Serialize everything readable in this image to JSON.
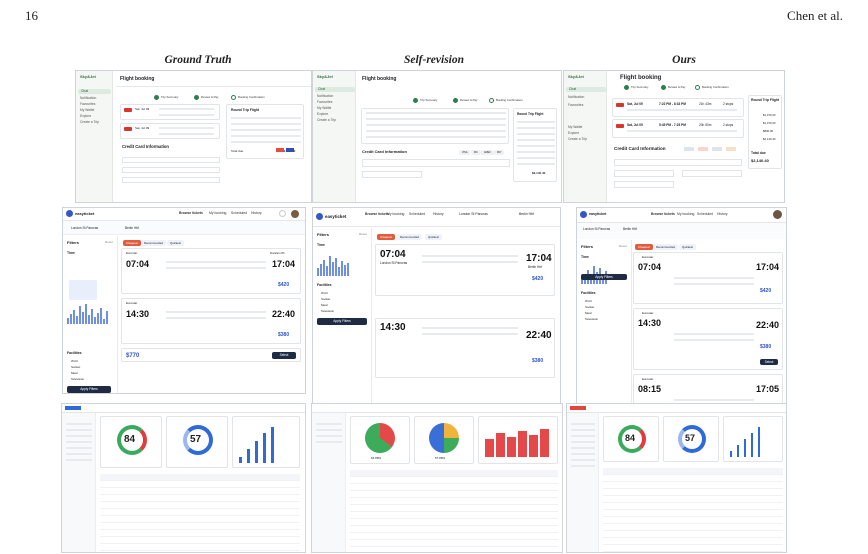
{
  "page_number": "16",
  "authors": "Chen et al.",
  "columns": [
    "Ground Truth",
    "Self-revision",
    "Ours"
  ],
  "flight": {
    "gt": {
      "logo": "Sky&Jet",
      "title": "Flight booking",
      "side": [
        "Chat",
        "Notification",
        "Favourites",
        "My Wallet",
        "Explore",
        "Create a Trip"
      ],
      "steps": [
        "Trip Summary",
        "Review & Pay",
        "Booking Confirmation"
      ],
      "times": [
        "Sat, Jul 09",
        "Sat, Jul 09"
      ],
      "round": "Round Trip Flight",
      "cc": "Credit Card Information",
      "prices": [
        "$1,070.00",
        "$890.00",
        "$2,140.00"
      ],
      "total": "Total due",
      "tot_val": "$2,140.40"
    },
    "sr": {
      "logo": "Sky&Jet",
      "title": "Flight booking",
      "side": [
        "Chat",
        "Notification",
        "Favourites",
        "My Wallet",
        "Explore",
        "Create a Trip"
      ],
      "steps": [
        "Trip Summary",
        "Review & Pay",
        "Booking Confirmation"
      ],
      "round": "Round Trip Flight",
      "cc": "Credit Card Information",
      "tot_val": "$2,140.40",
      "cards": [
        "VISA",
        "MC",
        "AMEX",
        "PAY"
      ]
    },
    "ours": {
      "logo": "Sky&Jet",
      "title": "Flight booking",
      "side": [
        "Chat",
        "Notification",
        "Favourites",
        "My Wallet",
        "Explore",
        "Create a Trip"
      ],
      "steps": [
        "Trip Summary",
        "Review & Pay",
        "Booking Confirmation"
      ],
      "r1": [
        "Sat, Jul 09",
        "7:22 PM - 8:33 PM",
        "21h 43m",
        "2 stops"
      ],
      "r2": [
        "Sat, Jul 09",
        "5:45 PM - 7:25 PM",
        "20h 50m",
        "2 stops"
      ],
      "round": "Round Trip Flight",
      "cc": "Credit Card Information",
      "total": "Total due",
      "tot_val": "$2,140.40",
      "sums": [
        "$1,070.00",
        "$1,070.00",
        "$890.00",
        "$2,140.40"
      ]
    }
  },
  "ticket": {
    "gt": {
      "brand": "easyticket",
      "nav": [
        "Browse tickets",
        "My booking",
        "Scheduled",
        "History"
      ],
      "from": "London St Pancras",
      "to": "Berlin Hbf",
      "filters": "Filters",
      "reset": "Reset",
      "time": "Time",
      "facilities": "Facilities",
      "fac": [
        "Wi-Fi",
        "Socket",
        "Meal",
        "Television"
      ],
      "apply": "Apply Filters",
      "t1": "07:04",
      "t2": "17:04",
      "t3": "14:30",
      "t4": "22:40",
      "p1": "$420",
      "p2": "$380",
      "p3": "$770",
      "select": "Select",
      "dur": "Duration 8h",
      "tabs": [
        "Cheapest",
        "Recommended",
        "Quickest"
      ],
      "operator": [
        "Eurostar",
        "Eurostar"
      ]
    },
    "sr": {
      "brand": "easyticket",
      "nav": [
        "Browse tickets",
        "My booking",
        "Scheduled",
        "History"
      ],
      "from": "London St Pancras",
      "to": "Berlin Hbf",
      "filters": "Filters",
      "reset": "Reset",
      "time": "Time",
      "facilities": "Facilities",
      "fac": [
        "Wi-Fi",
        "Socket",
        "Meal",
        "Television"
      ],
      "apply": "Apply Filters",
      "t1": "07:04",
      "t2": "17:04",
      "t3": "14:30",
      "t4": "22:40",
      "p1": "$420",
      "p2": "$380",
      "select": "Select",
      "tabs": [
        "Cheapest",
        "Recommended",
        "Quickest"
      ],
      "stations": [
        "London St Pancras",
        "Berlin Hbf"
      ],
      "pop": "Popular",
      "last": "$770"
    },
    "ours": {
      "brand": "easyticket",
      "nav": [
        "Browse tickets",
        "My booking",
        "Scheduled",
        "History"
      ],
      "from": "London St Pancras",
      "to": "Berlin Hbf",
      "filters": "Filters",
      "reset": "Reset",
      "time": "Time",
      "facilities": "Facilities",
      "fac": [
        "Wi-Fi",
        "Socket",
        "Meal",
        "Television"
      ],
      "apply": "Apply Filters",
      "t1": "07:04",
      "t2": "17:04",
      "t3": "14:30",
      "t4": "22:40",
      "t5": "08:15",
      "t6": "17:05",
      "p1": "$420",
      "p2": "$380",
      "select": "Select",
      "tabs": [
        "Cheapest",
        "Recommended",
        "Quickest"
      ],
      "op": [
        "Eurostar",
        "Eurostar",
        "Eurostar"
      ]
    }
  },
  "dash": {
    "gt": {
      "g1": "84",
      "g2": "57",
      "accent": "#2e6bd8"
    },
    "sr": {
      "l1": "64.88%",
      "l2": "57.88%"
    },
    "ours": {
      "g1": "84",
      "g2": "57"
    }
  }
}
